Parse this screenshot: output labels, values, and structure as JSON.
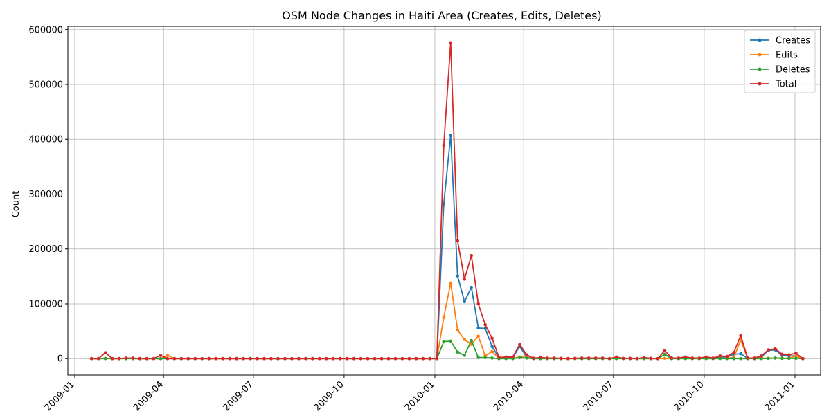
{
  "chart_data": {
    "type": "line",
    "title": "OSM Node Changes in Haiti Area (Creates, Edits, Deletes)",
    "xlabel": "",
    "ylabel": "Count",
    "x_ticks": [
      "2009-01",
      "2009-04",
      "2009-07",
      "2009-10",
      "2010-01",
      "2010-04",
      "2010-07",
      "2010-10",
      "2011-01"
    ],
    "y_ticks": [
      "0",
      "100000",
      "200000",
      "300000",
      "400000",
      "500000",
      "600000"
    ],
    "ylim": [
      -30000,
      606000
    ],
    "xlim": [
      "2008-12-25",
      "2011-01-27"
    ],
    "grid": true,
    "legend_position": "top-right",
    "marker": "dot",
    "x": [
      "2009-01-18",
      "2009-01-25",
      "2009-02-01",
      "2009-02-08",
      "2009-02-15",
      "2009-02-22",
      "2009-03-01",
      "2009-03-08",
      "2009-03-15",
      "2009-03-22",
      "2009-03-29",
      "2009-04-05",
      "2009-04-12",
      "2009-04-19",
      "2009-04-26",
      "2009-05-03",
      "2009-05-10",
      "2009-05-17",
      "2009-05-24",
      "2009-05-31",
      "2009-06-07",
      "2009-06-14",
      "2009-06-21",
      "2009-06-28",
      "2009-07-05",
      "2009-07-12",
      "2009-07-19",
      "2009-07-26",
      "2009-08-02",
      "2009-08-09",
      "2009-08-16",
      "2009-08-23",
      "2009-08-30",
      "2009-09-06",
      "2009-09-13",
      "2009-09-20",
      "2009-09-27",
      "2009-10-04",
      "2009-10-11",
      "2009-10-18",
      "2009-10-25",
      "2009-11-01",
      "2009-11-08",
      "2009-11-15",
      "2009-11-22",
      "2009-11-29",
      "2009-12-06",
      "2009-12-13",
      "2009-12-20",
      "2009-12-27",
      "2010-01-03",
      "2010-01-10",
      "2010-01-17",
      "2010-01-24",
      "2010-01-31",
      "2010-02-07",
      "2010-02-14",
      "2010-02-21",
      "2010-02-28",
      "2010-03-07",
      "2010-03-14",
      "2010-03-21",
      "2010-03-28",
      "2010-04-04",
      "2010-04-11",
      "2010-04-18",
      "2010-04-25",
      "2010-05-02",
      "2010-05-09",
      "2010-05-16",
      "2010-05-23",
      "2010-05-30",
      "2010-06-06",
      "2010-06-13",
      "2010-06-20",
      "2010-06-27",
      "2010-07-04",
      "2010-07-11",
      "2010-07-18",
      "2010-07-25",
      "2010-08-01",
      "2010-08-08",
      "2010-08-15",
      "2010-08-22",
      "2010-08-29",
      "2010-09-05",
      "2010-09-12",
      "2010-09-19",
      "2010-09-26",
      "2010-10-03",
      "2010-10-10",
      "2010-10-17",
      "2010-10-24",
      "2010-10-31",
      "2010-11-07",
      "2010-11-14",
      "2010-11-21",
      "2010-11-28",
      "2010-12-05",
      "2010-12-12",
      "2010-12-19",
      "2010-12-26",
      "2011-01-02",
      "2011-01-09"
    ],
    "series": [
      {
        "name": "Creates",
        "color": "#1f77b4",
        "values": [
          0,
          0,
          500,
          0,
          0,
          300,
          200,
          0,
          0,
          0,
          0,
          100,
          0,
          0,
          0,
          0,
          0,
          0,
          0,
          0,
          0,
          0,
          0,
          0,
          0,
          0,
          0,
          0,
          0,
          0,
          0,
          0,
          0,
          0,
          0,
          0,
          0,
          0,
          0,
          0,
          0,
          0,
          0,
          0,
          0,
          0,
          0,
          0,
          0,
          0,
          0,
          282000,
          407000,
          151000,
          104000,
          130000,
          56000,
          55000,
          22000,
          1500,
          2500,
          2500,
          22000,
          3000,
          500,
          800,
          500,
          500,
          300,
          0,
          300,
          300,
          500,
          500,
          500,
          0,
          1000,
          200,
          200,
          0,
          500,
          0,
          0,
          8000,
          500,
          500,
          1000,
          500,
          500,
          1000,
          500,
          2000,
          3000,
          8000,
          9000,
          500,
          500,
          3000,
          15000,
          16000,
          6000,
          5000,
          5000,
          0
        ]
      },
      {
        "name": "Edits",
        "color": "#ff7f0e",
        "values": [
          0,
          0,
          300,
          0,
          0,
          200,
          200,
          0,
          0,
          0,
          0,
          6000,
          0,
          0,
          0,
          0,
          0,
          0,
          0,
          0,
          0,
          0,
          0,
          0,
          0,
          0,
          0,
          0,
          0,
          0,
          0,
          0,
          0,
          0,
          0,
          0,
          0,
          0,
          0,
          0,
          0,
          0,
          0,
          0,
          0,
          0,
          0,
          0,
          0,
          0,
          0,
          75000,
          138000,
          52000,
          35000,
          26000,
          41000,
          5000,
          13000,
          500,
          300,
          500,
          3000,
          5000,
          200,
          300,
          300,
          200,
          200,
          0,
          200,
          200,
          200,
          300,
          300,
          0,
          500,
          100,
          100,
          0,
          200,
          0,
          0,
          500,
          200,
          200,
          500,
          200,
          200,
          500,
          200,
          500,
          1000,
          2000,
          34000,
          300,
          300,
          1000,
          500,
          1000,
          500,
          500,
          5000,
          0
        ]
      },
      {
        "name": "Deletes",
        "color": "#2ca02c",
        "values": [
          0,
          0,
          0,
          0,
          0,
          0,
          0,
          0,
          0,
          0,
          0,
          0,
          0,
          0,
          0,
          0,
          0,
          0,
          0,
          0,
          0,
          0,
          0,
          0,
          0,
          0,
          0,
          0,
          0,
          0,
          0,
          0,
          0,
          0,
          0,
          0,
          0,
          0,
          0,
          0,
          0,
          0,
          0,
          0,
          0,
          0,
          0,
          0,
          0,
          0,
          0,
          31000,
          32000,
          12000,
          6000,
          33000,
          2000,
          2000,
          1000,
          0,
          0,
          0,
          2000,
          1000,
          0,
          0,
          0,
          0,
          0,
          0,
          0,
          0,
          0,
          0,
          0,
          0,
          0,
          0,
          0,
          0,
          0,
          0,
          0,
          8000,
          0,
          0,
          0,
          0,
          0,
          0,
          0,
          0,
          0,
          0,
          0,
          0,
          0,
          0,
          500,
          1000,
          500,
          500,
          500,
          0
        ]
      },
      {
        "name": "Total",
        "color": "#d62728",
        "values": [
          0,
          0,
          11000,
          0,
          0,
          1000,
          1000,
          0,
          0,
          0,
          6000,
          0,
          0,
          0,
          0,
          0,
          0,
          0,
          0,
          0,
          0,
          0,
          0,
          0,
          0,
          0,
          0,
          0,
          0,
          0,
          0,
          0,
          0,
          0,
          0,
          0,
          0,
          0,
          0,
          0,
          0,
          0,
          0,
          0,
          0,
          0,
          0,
          0,
          0,
          0,
          0,
          389000,
          576000,
          215000,
          145000,
          188000,
          100000,
          62000,
          37000,
          2000,
          3000,
          3000,
          26000,
          7000,
          700,
          2000,
          1000,
          1000,
          500,
          0,
          500,
          1000,
          1000,
          1000,
          1000,
          0,
          3000,
          500,
          500,
          0,
          2000,
          500,
          0,
          15000,
          1000,
          1000,
          3000,
          1000,
          1000,
          3000,
          1000,
          5000,
          4000,
          11000,
          42000,
          1000,
          1000,
          5000,
          16000,
          18000,
          8000,
          7000,
          10000,
          0
        ]
      }
    ]
  }
}
